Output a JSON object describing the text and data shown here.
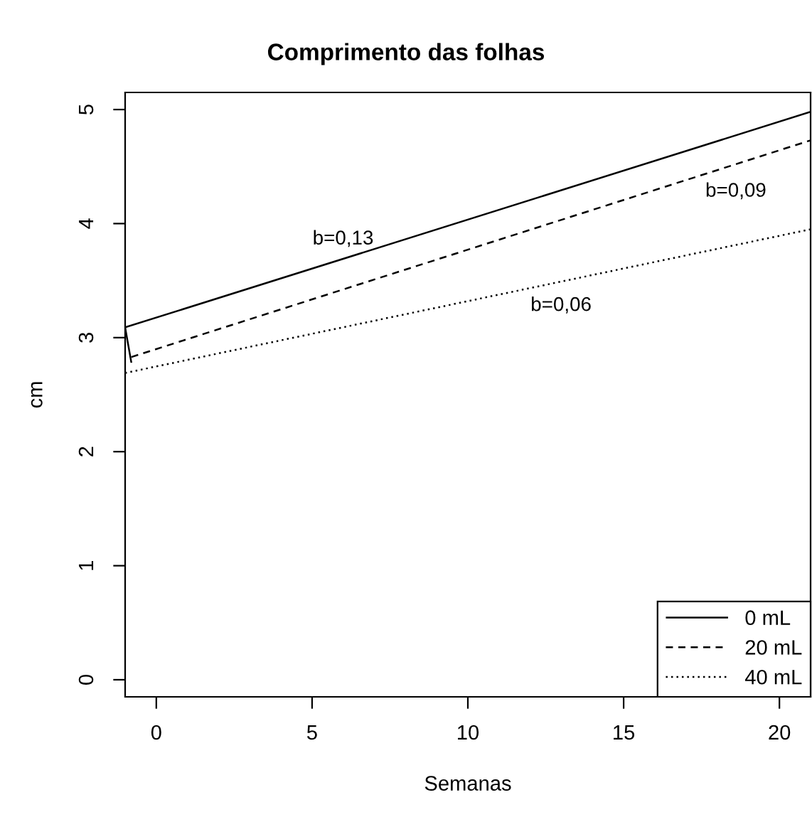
{
  "chart_data": {
    "type": "line",
    "title": "Comprimento das folhas",
    "xlabel": "Semanas",
    "ylabel": "cm",
    "series": [
      {
        "name": "0 mL",
        "color": "#000000",
        "line_style": "solid",
        "x": [
          -0.8,
          -1,
          21
        ],
        "values": [
          2.78,
          3.09,
          4.98
        ]
      },
      {
        "name": "20 mL",
        "color": "#000000",
        "line_style": "dashed",
        "x": [
          -0.8,
          21
        ],
        "values": [
          2.83,
          4.73
        ]
      },
      {
        "name": "40 mL",
        "color": "#000000",
        "line_style": "dotted",
        "x": [
          -1,
          21
        ],
        "values": [
          2.69,
          3.95
        ]
      }
    ],
    "annotations": [
      "b=0,13",
      "b=0,09",
      "b=0,06"
    ],
    "xlim": [
      -1,
      21
    ],
    "ylim": [
      -0.15,
      5.15
    ],
    "xticks": [
      0,
      5,
      10,
      15,
      20
    ],
    "yticks": [
      0,
      1,
      2,
      3,
      4,
      5
    ],
    "legend": "bottom right",
    "grid": false
  }
}
